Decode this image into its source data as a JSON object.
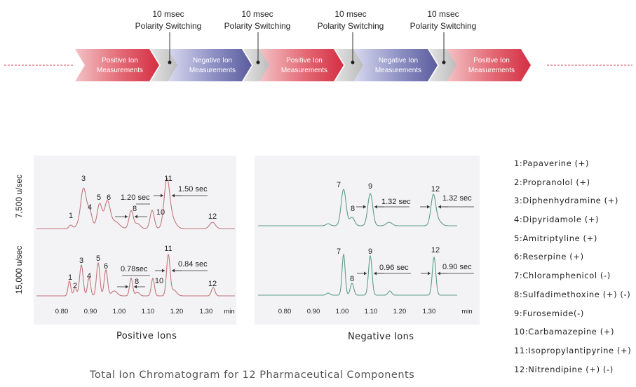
{
  "top_timeline": {
    "labels": [
      {
        "time": "10 msec",
        "text": "Polarity Switching"
      },
      {
        "time": "10 msec",
        "text": "Polarity Switching"
      },
      {
        "time": "10 msec",
        "text": "Polarity Switching"
      },
      {
        "time": "10 msec",
        "text": "Polarity Switching"
      }
    ],
    "segments": [
      {
        "type": "positive",
        "line1": "Positive Ion",
        "line2": "Measurements"
      },
      {
        "type": "negative",
        "line1": "Negative Ion",
        "line2": "Measurements"
      },
      {
        "type": "positive",
        "line1": "Positive Ion",
        "line2": "Measurements"
      },
      {
        "type": "negative",
        "line1": "Negative Ion",
        "line2": "Measurements"
      },
      {
        "type": "positive",
        "line1": "Positive Ion",
        "line2": "Measurements"
      }
    ],
    "colors": {
      "positive": "#d8394a",
      "negative": "#6b6fae",
      "switch": "#c4c4c4"
    }
  },
  "y_labels": {
    "top": "7,500 u/sec",
    "bottom": "15,000 u/sec"
  },
  "panels": {
    "positive": {
      "title": "Positive Ions",
      "x_ticks": [
        "0.80",
        "0.90",
        "1.00",
        "1.10",
        "1.20",
        "1.30"
      ],
      "x_unit": "min",
      "top_peaks": [
        "1",
        "3",
        "4",
        "5",
        "6",
        "8",
        "10",
        "11",
        "12"
      ],
      "bottom_peaks": [
        "1",
        "2",
        "3",
        "4",
        "5",
        "6",
        "8",
        "10",
        "11",
        "12"
      ],
      "top_annotations": [
        "1.20 sec",
        "1.50 sec"
      ],
      "bottom_annotations": [
        "0.78sec",
        "0.84 sec"
      ],
      "color": "#c2767a"
    },
    "negative": {
      "title": "Negative Ions",
      "x_ticks": [
        "0.80",
        "0.90",
        "1.00",
        "1.10",
        "1.20",
        "1.30"
      ],
      "x_unit": "min",
      "top_peaks": [
        "7",
        "8",
        "9",
        "12"
      ],
      "bottom_peaks": [
        "7",
        "8",
        "9",
        "12"
      ],
      "top_annotations": [
        "1.32 sec",
        "1.32 sec"
      ],
      "bottom_annotations": [
        "0.96 sec",
        "0.90 sec"
      ],
      "color": "#5f9c8a"
    }
  },
  "legend": [
    "1:Papaverine (+)",
    "2:Propranolol (+)",
    "3:Diphenhydramine (+)",
    "4:Dipyridamole (+)",
    "5:Amitriptyline (+)",
    "6:Reserpine (+)",
    "7:Chloramphenicol (-)",
    "8:Sulfadimethoxine (+) (-)",
    "9:Furosemide(-)",
    "10:Carbamazepine (+)",
    "11:Isopropylantipyrine (+)",
    "12:Nitrendipine  (+) (-)"
  ],
  "caption": "Total Ion Chromatogram for 12 Pharmaceutical Components"
}
